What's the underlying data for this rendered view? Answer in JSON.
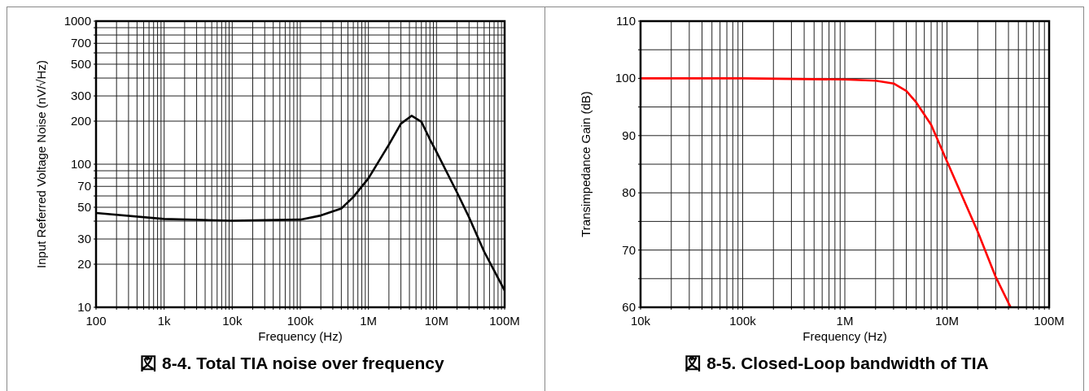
{
  "chart_data": [
    {
      "type": "line",
      "title": "図 8-4. Total TIA noise over frequency",
      "xlabel": "Frequency (Hz)",
      "ylabel": "Input Referred Voltage Noise  (nV/√Hz)",
      "log": "xy",
      "grid": true,
      "x": [
        100,
        1000,
        10000,
        100000,
        200000,
        400000,
        600000,
        1000000,
        2000000,
        3000000,
        4300000,
        6000000,
        8000000,
        10000000,
        20000000,
        30000000,
        50000000,
        100000000
      ],
      "series": [
        {
          "color": "#000000",
          "values": [
            45.6,
            41.4,
            40.3,
            41,
            43.8,
            49,
            59,
            79.6,
            137,
            192,
            218,
            198,
            149,
            122,
            63.5,
            42.6,
            24.5,
            13.1
          ]
        }
      ],
      "xlim": [
        100,
        100000000
      ],
      "ylim": [
        10,
        1000
      ],
      "xticks": [
        100,
        {
          "value": 200,
          "label": null
        },
        {
          "value": 300,
          "label": null
        },
        {
          "value": 400,
          "label": null
        },
        {
          "value": 500,
          "label": null
        },
        {
          "value": 600,
          "label": null
        },
        {
          "value": 700,
          "label": null
        },
        {
          "value": 800,
          "label": null
        },
        {
          "value": 900,
          "label": null
        },
        {
          "value": 1000,
          "label": "1k"
        },
        {
          "value": 2000,
          "label": null
        },
        {
          "value": 3000,
          "label": null
        },
        {
          "value": 4000,
          "label": null
        },
        {
          "value": 5000,
          "label": null
        },
        {
          "value": 6000,
          "label": null
        },
        {
          "value": 7000,
          "label": null
        },
        {
          "value": 8000,
          "label": null
        },
        {
          "value": 9000,
          "label": null
        },
        {
          "value": 10000,
          "label": "10k"
        },
        {
          "value": 20000,
          "label": null
        },
        {
          "value": 30000,
          "label": null
        },
        {
          "value": 40000,
          "label": null
        },
        {
          "value": 50000,
          "label": null
        },
        {
          "value": 60000,
          "label": null
        },
        {
          "value": 70000,
          "label": null
        },
        {
          "value": 80000,
          "label": null
        },
        {
          "value": 90000,
          "label": null
        },
        {
          "value": 100000,
          "label": "100k"
        },
        {
          "value": 200000,
          "label": null
        },
        {
          "value": 300000,
          "label": null
        },
        {
          "value": 400000,
          "label": null
        },
        {
          "value": 500000,
          "label": null
        },
        {
          "value": 600000,
          "label": null
        },
        {
          "value": 700000,
          "label": null
        },
        {
          "value": 800000,
          "label": null
        },
        {
          "value": 900000,
          "label": null
        },
        {
          "value": 1000000,
          "label": "1M"
        },
        {
          "value": 2000000,
          "label": null
        },
        {
          "value": 3000000,
          "label": null
        },
        {
          "value": 4000000,
          "label": null
        },
        {
          "value": 5000000,
          "label": null
        },
        {
          "value": 6000000,
          "label": null
        },
        {
          "value": 7000000,
          "label": null
        },
        {
          "value": 8000000,
          "label": null
        },
        {
          "value": 9000000,
          "label": null
        },
        {
          "value": 10000000,
          "label": "10M"
        },
        {
          "value": 20000000,
          "label": null
        },
        {
          "value": 30000000,
          "label": null
        },
        {
          "value": 40000000,
          "label": null
        },
        {
          "value": 50000000,
          "label": null
        },
        {
          "value": 60000000,
          "label": null
        },
        {
          "value": 70000000,
          "label": null
        },
        {
          "value": 80000000,
          "label": null
        },
        {
          "value": 90000000,
          "label": null
        },
        {
          "value": 100000000,
          "label": "100M"
        }
      ],
      "yticks": [
        10,
        20,
        30,
        {
          "value": 40,
          "label": null
        },
        50,
        {
          "value": 60,
          "label": null
        },
        70,
        {
          "value": 80,
          "label": null
        },
        {
          "value": 90,
          "label": null
        },
        100,
        200,
        300,
        {
          "value": 400,
          "label": null
        },
        500,
        {
          "value": 600,
          "label": null
        },
        700,
        {
          "value": 800,
          "label": null
        },
        {
          "value": 900,
          "label": null
        },
        1000
      ]
    },
    {
      "type": "line",
      "title": "図 8-5. Closed-Loop bandwidth of TIA",
      "xlabel": "Frequency (Hz)",
      "ylabel": "Transimpedance Gain (dB)",
      "log": "x",
      "grid": true,
      "x": [
        10000,
        100000,
        1000000,
        2000000,
        3000000,
        4000000,
        5000000,
        7000000,
        10000000,
        20000000,
        30000000,
        42000000
      ],
      "series": [
        {
          "color": "#ff0000",
          "values": [
            100,
            100,
            99.8,
            99.6,
            99.1,
            97.8,
            95.8,
            91.9,
            85.5,
            73.2,
            65.3,
            60
          ]
        }
      ],
      "xlim": [
        10000,
        100000000
      ],
      "ylim": [
        60,
        110
      ],
      "xticks": [
        {
          "value": 10000,
          "label": "10k"
        },
        {
          "value": 20000,
          "label": null
        },
        {
          "value": 30000,
          "label": null
        },
        {
          "value": 40000,
          "label": null
        },
        {
          "value": 50000,
          "label": null
        },
        {
          "value": 60000,
          "label": null
        },
        {
          "value": 70000,
          "label": null
        },
        {
          "value": 80000,
          "label": null
        },
        {
          "value": 90000,
          "label": null
        },
        {
          "value": 100000,
          "label": "100k"
        },
        {
          "value": 200000,
          "label": null
        },
        {
          "value": 300000,
          "label": null
        },
        {
          "value": 400000,
          "label": null
        },
        {
          "value": 500000,
          "label": null
        },
        {
          "value": 600000,
          "label": null
        },
        {
          "value": 700000,
          "label": null
        },
        {
          "value": 800000,
          "label": null
        },
        {
          "value": 900000,
          "label": null
        },
        {
          "value": 1000000,
          "label": "1M"
        },
        {
          "value": 2000000,
          "label": null
        },
        {
          "value": 3000000,
          "label": null
        },
        {
          "value": 4000000,
          "label": null
        },
        {
          "value": 5000000,
          "label": null
        },
        {
          "value": 6000000,
          "label": null
        },
        {
          "value": 7000000,
          "label": null
        },
        {
          "value": 8000000,
          "label": null
        },
        {
          "value": 9000000,
          "label": null
        },
        {
          "value": 10000000,
          "label": "10M"
        },
        {
          "value": 20000000,
          "label": null
        },
        {
          "value": 30000000,
          "label": null
        },
        {
          "value": 40000000,
          "label": null
        },
        {
          "value": 50000000,
          "label": null
        },
        {
          "value": 60000000,
          "label": null
        },
        {
          "value": 70000000,
          "label": null
        },
        {
          "value": 80000000,
          "label": null
        },
        {
          "value": 90000000,
          "label": null
        },
        {
          "value": 100000000,
          "label": "100M"
        }
      ],
      "yticks": [
        60,
        {
          "value": 65,
          "label": null
        },
        70,
        {
          "value": 75,
          "label": null
        },
        80,
        {
          "value": 85,
          "label": null
        },
        90,
        {
          "value": 95,
          "label": null
        },
        100,
        {
          "value": 105,
          "label": null
        },
        110
      ]
    }
  ]
}
